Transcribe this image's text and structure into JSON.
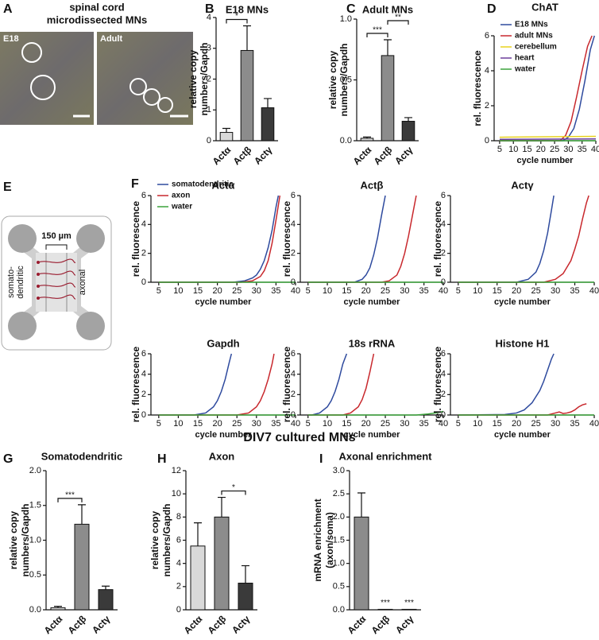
{
  "panel_labels": [
    "A",
    "B",
    "C",
    "D",
    "E",
    "F",
    "G",
    "H",
    "I"
  ],
  "heading": "DIV7 cultured MNs",
  "image_panel": {
    "title": [
      "spinal cord",
      "microdissected MNs"
    ],
    "images": [
      "E18",
      "Adult"
    ]
  },
  "diagram": {
    "scale": "150 µm",
    "left": [
      "somato-",
      "dendritic"
    ],
    "right": "axonal"
  },
  "chart_data": [
    {
      "type": "bar",
      "title": "E18 MNs",
      "ylabel": [
        "relative copy",
        "numbers/Gapdh"
      ],
      "categories": [
        "Actα",
        "Actβ",
        "Actγ"
      ],
      "values": [
        0.27,
        2.93,
        1.07
      ],
      "errors": [
        0.13,
        0.8,
        0.3
      ],
      "colors": [
        "#d9d9d9",
        "#8c8c8c",
        "#3a3a3a"
      ],
      "ylim": [
        0,
        4
      ],
      "yticks": [
        0,
        1,
        2,
        3,
        4
      ],
      "significance": [
        {
          "between": [
            "Actα",
            "Actβ"
          ],
          "label": "*"
        }
      ]
    },
    {
      "type": "bar",
      "title": "Adult MNs",
      "ylabel": [
        "relative copy",
        "numbers/Gapdh"
      ],
      "categories": [
        "Actα",
        "Actβ",
        "Actγ"
      ],
      "values": [
        0.02,
        0.7,
        0.16
      ],
      "errors": [
        0.01,
        0.13,
        0.03
      ],
      "colors": [
        "#d9d9d9",
        "#8c8c8c",
        "#3a3a3a"
      ],
      "ylim": [
        0,
        1.0
      ],
      "yticks": [
        {
          "value": 0,
          "label": "0.0"
        },
        0.5,
        {
          "value": 1,
          "label": "1.0"
        }
      ],
      "significance": [
        {
          "between": [
            "Actα",
            "Actβ"
          ],
          "label": "***"
        },
        {
          "between": [
            "Actβ",
            "Actγ"
          ],
          "label": "**"
        }
      ]
    },
    {
      "type": "line",
      "title": "ChAT",
      "xlabel": "cycle number",
      "ylabel": "rel. fluorescence",
      "xlim": [
        3,
        40
      ],
      "xticks": [
        5,
        10,
        15,
        20,
        25,
        30,
        35,
        40
      ],
      "ylim": [
        0,
        6
      ],
      "yticks": [
        0,
        2,
        4,
        6
      ],
      "legend": "top-left",
      "series": [
        {
          "name": "E18 MNs",
          "color": "#2e4a9e",
          "x": [
            5,
            28,
            30,
            32,
            34,
            36,
            38,
            39.5
          ],
          "values": [
            0,
            0,
            0.2,
            0.7,
            1.8,
            3.4,
            5.2,
            6
          ]
        },
        {
          "name": "adult MNs",
          "color": "#c8282d",
          "x": [
            5,
            27,
            29,
            31,
            33,
            35,
            37,
            38.6
          ],
          "values": [
            0,
            0,
            0.3,
            1.1,
            2.5,
            4.0,
            5.4,
            6
          ]
        },
        {
          "name": "cerebellum",
          "color": "#e8d21e",
          "x": [
            5,
            40
          ],
          "values": [
            0.2,
            0.25
          ]
        },
        {
          "name": "heart",
          "color": "#6a3d9a",
          "x": [
            5,
            40
          ],
          "values": [
            0.08,
            0.1
          ]
        },
        {
          "name": "water",
          "color": "#3aa33a",
          "x": [
            5,
            40
          ],
          "values": [
            0,
            0
          ]
        }
      ]
    },
    {
      "type": "line",
      "title": "Actα",
      "xlabel": "cycle number",
      "ylabel": "rel. fluorescence",
      "xlim": [
        3,
        40
      ],
      "xticks": [
        5,
        10,
        15,
        20,
        25,
        30,
        35,
        40
      ],
      "ylim": [
        0,
        6
      ],
      "yticks": [
        0,
        2,
        4,
        6
      ],
      "legend": "top-left",
      "series": [
        {
          "name": "somatodendritic",
          "color": "#2e4a9e",
          "x": [
            5,
            24,
            27,
            29,
            30,
            31,
            32,
            33,
            34,
            35,
            35.6
          ],
          "values": [
            0,
            0,
            0.1,
            0.3,
            0.5,
            0.9,
            1.5,
            2.4,
            3.6,
            5.2,
            6
          ]
        },
        {
          "name": "axon",
          "color": "#c8282d",
          "x": [
            5,
            26,
            29,
            31,
            32,
            33,
            34,
            35,
            36
          ],
          "values": [
            0,
            0,
            0.1,
            0.4,
            0.8,
            1.5,
            2.7,
            4.3,
            6
          ]
        },
        {
          "name": "water",
          "color": "#3aa33a",
          "x": [
            5,
            40
          ],
          "values": [
            0,
            0
          ]
        }
      ]
    },
    {
      "type": "line",
      "title": "Actβ",
      "xlabel": "cycle number",
      "ylabel": "rel. fluorescence",
      "xlim": [
        3,
        40
      ],
      "xticks": [
        5,
        10,
        15,
        20,
        25,
        30,
        35,
        40
      ],
      "ylim": [
        0,
        6
      ],
      "yticks": [
        0,
        2,
        4,
        6
      ],
      "series": [
        {
          "color": "#2e4a9e",
          "x": [
            5,
            17,
            19,
            20,
            21,
            22,
            23,
            24,
            25
          ],
          "values": [
            0,
            0,
            0.2,
            0.5,
            1.0,
            1.9,
            3.1,
            4.6,
            6
          ]
        },
        {
          "color": "#c8282d",
          "x": [
            5,
            24,
            26,
            28,
            29,
            30,
            31,
            32,
            33
          ],
          "values": [
            0,
            0,
            0.1,
            0.5,
            1.1,
            2.0,
            3.2,
            4.6,
            6
          ]
        },
        {
          "color": "#3aa33a",
          "x": [
            5,
            40
          ],
          "values": [
            0,
            0
          ]
        }
      ]
    },
    {
      "type": "line",
      "title": "Actγ",
      "xlabel": "cycle number",
      "ylabel": "rel. fluorescence",
      "xlim": [
        3,
        40
      ],
      "xticks": [
        5,
        10,
        15,
        20,
        25,
        30,
        35,
        40
      ],
      "ylim": [
        0,
        6
      ],
      "yticks": [
        0,
        2,
        4,
        6
      ],
      "series": [
        {
          "color": "#2e4a9e",
          "x": [
            5,
            20,
            23,
            25,
            26,
            27,
            28,
            29,
            29.6
          ],
          "values": [
            0,
            0,
            0.2,
            0.7,
            1.3,
            2.2,
            3.4,
            5,
            6
          ]
        },
        {
          "color": "#c8282d",
          "x": [
            5,
            27,
            30,
            32,
            34,
            35,
            36,
            37,
            38,
            38.6
          ],
          "values": [
            0,
            0,
            0.2,
            0.6,
            1.5,
            2.3,
            3.2,
            4.4,
            5.5,
            6
          ]
        },
        {
          "color": "#3aa33a",
          "x": [
            5,
            40
          ],
          "values": [
            0,
            0
          ]
        }
      ]
    },
    {
      "type": "line",
      "title": "Gapdh",
      "xlabel": "cycle number",
      "ylabel": "rel. fluorescence",
      "xlim": [
        3,
        40
      ],
      "xticks": [
        5,
        10,
        15,
        20,
        25,
        30,
        35,
        40
      ],
      "ylim": [
        0,
        6
      ],
      "yticks": [
        0,
        2,
        4,
        6
      ],
      "series": [
        {
          "color": "#2e4a9e",
          "x": [
            5,
            14,
            17,
            19,
            20,
            21,
            22,
            23,
            23.6
          ],
          "values": [
            0,
            0,
            0.2,
            0.8,
            1.4,
            2.3,
            3.5,
            5.1,
            6
          ]
        },
        {
          "color": "#c8282d",
          "x": [
            5,
            25,
            28,
            30,
            31,
            32,
            33,
            34,
            34.5
          ],
          "values": [
            0,
            0,
            0.2,
            0.8,
            1.4,
            2.3,
            3.5,
            5.0,
            6
          ]
        },
        {
          "color": "#3aa33a",
          "x": [
            5,
            40
          ],
          "values": [
            0,
            0
          ]
        }
      ]
    },
    {
      "type": "line",
      "title": "18s rRNA",
      "xlabel": "cycle number",
      "ylabel": "rel. fluorescence",
      "xlim": [
        3,
        40
      ],
      "xticks": [
        5,
        10,
        15,
        20,
        25,
        30,
        35,
        40
      ],
      "ylim": [
        0,
        6
      ],
      "yticks": [
        0,
        2,
        4,
        6
      ],
      "series": [
        {
          "color": "#2e4a9e",
          "x": [
            5,
            6,
            8,
            10,
            11,
            12,
            13,
            14,
            15
          ],
          "values": [
            0,
            0,
            0.2,
            0.8,
            1.4,
            2.3,
            3.5,
            5.0,
            6
          ]
        },
        {
          "color": "#c8282d",
          "x": [
            5,
            14,
            16,
            18,
            19,
            20,
            21,
            22
          ],
          "values": [
            0,
            0,
            0.2,
            0.8,
            1.5,
            2.6,
            4.2,
            6
          ]
        },
        {
          "color": "#3aa33a",
          "x": [
            5,
            33,
            36,
            38,
            40
          ],
          "values": [
            0,
            0,
            0.1,
            0.2,
            0.35
          ]
        }
      ]
    },
    {
      "type": "line",
      "title": "Histone H1",
      "xlabel": "cycle number",
      "ylabel": "rel. fluorescence",
      "xlim": [
        3,
        40
      ],
      "xticks": [
        5,
        10,
        15,
        20,
        25,
        30,
        35,
        40
      ],
      "ylim": [
        0,
        6
      ],
      "yticks": [
        0,
        2,
        4,
        6
      ],
      "series": [
        {
          "color": "#2e4a9e",
          "x": [
            5,
            17,
            20,
            22,
            24,
            26,
            27,
            28,
            29,
            29.6
          ],
          "values": [
            0,
            0.05,
            0.2,
            0.5,
            1.2,
            2.4,
            3.3,
            4.4,
            5.5,
            6
          ]
        },
        {
          "color": "#c8282d",
          "x": [
            5,
            28,
            30,
            31,
            32,
            33,
            34,
            35,
            36,
            37,
            38
          ],
          "values": [
            0,
            0,
            0.2,
            0.3,
            0.15,
            0.2,
            0.3,
            0.5,
            0.8,
            1.0,
            1.1
          ]
        },
        {
          "color": "#3aa33a",
          "x": [
            5,
            40
          ],
          "values": [
            0,
            0
          ]
        }
      ]
    },
    {
      "type": "bar",
      "title": "Somatodendritic",
      "ylabel": [
        "relative copy",
        "numbers/Gapdh"
      ],
      "categories": [
        "Actα",
        "Actβ",
        "Actγ"
      ],
      "values": [
        0.03,
        1.23,
        0.29
      ],
      "errors": [
        0.02,
        0.28,
        0.05
      ],
      "colors": [
        "#d9d9d9",
        "#8c8c8c",
        "#3a3a3a"
      ],
      "ylim": [
        0,
        2.0
      ],
      "yticks": [
        {
          "value": 0,
          "label": "0.0"
        },
        0.5,
        {
          "value": 1,
          "label": "1.0"
        },
        1.5,
        {
          "value": 2,
          "label": "2.0"
        }
      ],
      "significance": [
        {
          "between": [
            "Actα",
            "Actβ"
          ],
          "label": "***"
        }
      ]
    },
    {
      "type": "bar",
      "title": "Axon",
      "ylabel": [
        "relative copy",
        "numbers/Gapdh"
      ],
      "categories": [
        "Actα",
        "Actβ",
        "Actγ"
      ],
      "values": [
        5.5,
        8.0,
        2.3
      ],
      "errors": [
        2.0,
        1.7,
        1.5
      ],
      "colors": [
        "#d9d9d9",
        "#8c8c8c",
        "#3a3a3a"
      ],
      "ylim": [
        0,
        12
      ],
      "yticks": [
        0,
        2,
        4,
        6,
        8,
        10,
        12
      ],
      "significance": [
        {
          "between": [
            "Actβ",
            "Actγ"
          ],
          "label": "*"
        }
      ]
    },
    {
      "type": "bar",
      "title": "Axonal enrichment",
      "ylabel": [
        "mRNA enrichment",
        "(axon/soma)"
      ],
      "categories": [
        "Actα",
        "Actβ",
        "Actγ"
      ],
      "values": [
        2.0,
        0.01,
        0.01
      ],
      "errors": [
        0.52,
        0,
        0
      ],
      "colors": [
        "#8c8c8c",
        "#8c8c8c",
        "#8c8c8c"
      ],
      "ylim": [
        0,
        3.0
      ],
      "yticks": [
        {
          "value": 0,
          "label": "0.0"
        },
        0.5,
        {
          "value": 1,
          "label": "1.0"
        },
        1.5,
        {
          "value": 2,
          "label": "2.0"
        },
        2.5,
        {
          "value": 3,
          "label": "3.0"
        }
      ],
      "annotations": [
        {
          "category": "Actβ",
          "label": "***"
        },
        {
          "category": "Actγ",
          "label": "***"
        }
      ]
    }
  ]
}
